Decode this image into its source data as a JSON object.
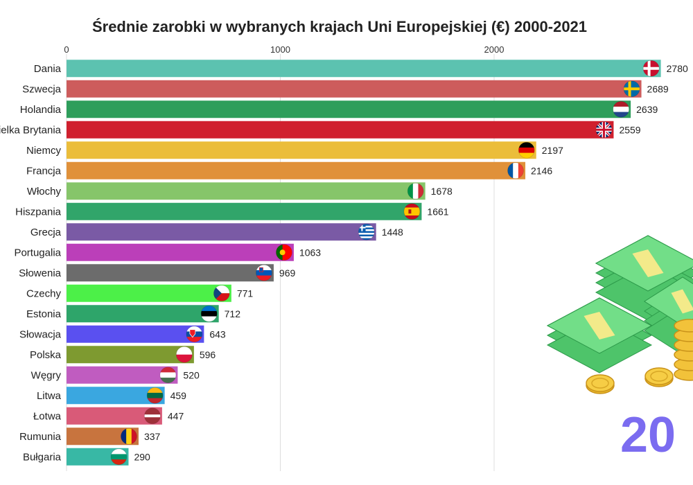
{
  "chart_data": {
    "type": "bar",
    "orientation": "horizontal",
    "title": "Średnie zarobki w wybranych krajach Uni Europejskiej (€) 2000-2021",
    "xlabel": "",
    "ylabel": "",
    "xlim": [
      0,
      2800
    ],
    "x_ticks": [
      "0",
      "1000",
      "2000"
    ],
    "grid": true,
    "year_label": "20",
    "categories": [
      "Dania",
      "Szwecja",
      "Holandia",
      "Wielka Brytania",
      "Niemcy",
      "Francja",
      "Włochy",
      "Hiszpania",
      "Grecja",
      "Portugalia",
      "Słowenia",
      "Czechy",
      "Estonia",
      "Słowacja",
      "Polska",
      "Węgry",
      "Litwa",
      "Łotwa",
      "Rumunia",
      "Bułgaria"
    ],
    "values": [
      2780,
      2689,
      2639,
      2559,
      2197,
      2146,
      1678,
      1661,
      1448,
      1063,
      969,
      771,
      712,
      643,
      596,
      520,
      459,
      447,
      337,
      290
    ],
    "value_labels": [
      "2780",
      "2689",
      "2639",
      "2559",
      "2197",
      "2146",
      "1678",
      "1661",
      "1448",
      "1063",
      "969",
      "771",
      "712",
      "643",
      "596",
      "520",
      "459",
      "447",
      "337",
      "290"
    ],
    "colors": [
      "#5cc2b0",
      "#cd5c5c",
      "#2e9e5b",
      "#d0202e",
      "#ebbd3a",
      "#e0913a",
      "#86c56a",
      "#31a56a",
      "#7a5aa5",
      "#bb3fb9",
      "#6c6c6c",
      "#4cf048",
      "#2ea56a",
      "#5a50f0",
      "#7e9a30",
      "#c05cc0",
      "#3aa7e0",
      "#d95a78",
      "#c8743e",
      "#38b8a5"
    ],
    "flags": [
      "denmark-flag",
      "sweden-flag",
      "netherlands-flag",
      "uk-flag",
      "germany-flag",
      "france-flag",
      "italy-flag",
      "spain-flag",
      "greece-flag",
      "portugal-flag",
      "slovenia-flag",
      "czechia-flag",
      "estonia-flag",
      "slovakia-flag",
      "poland-flag",
      "hungary-flag",
      "lithuania-flag",
      "latvia-flag",
      "romania-flag",
      "bulgaria-flag"
    ],
    "decoration": "money-illustration"
  }
}
